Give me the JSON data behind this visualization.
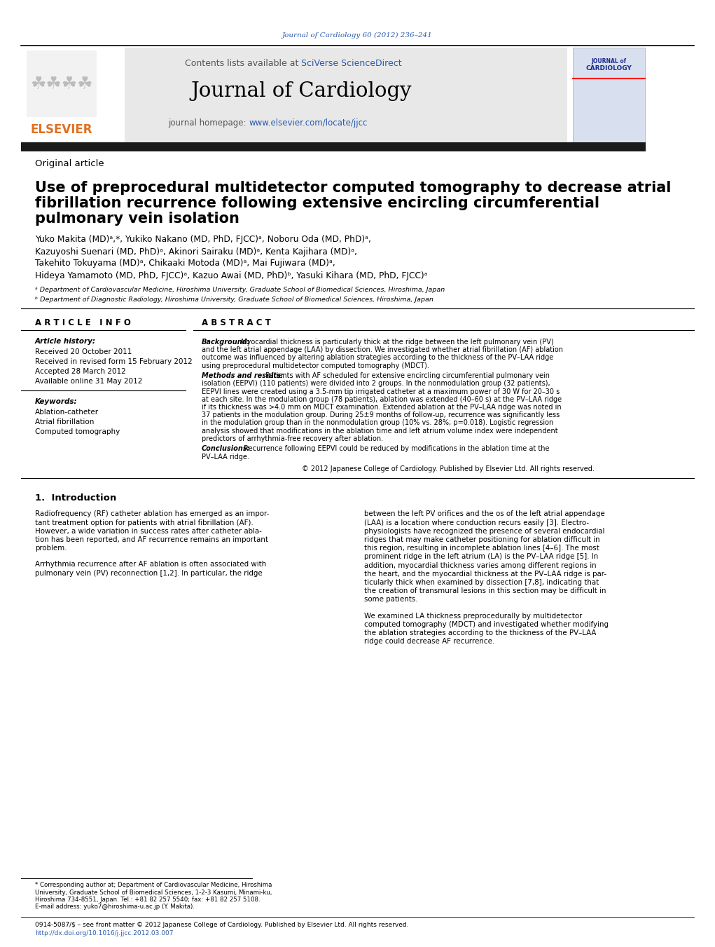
{
  "page_bg": "#ffffff",
  "top_citation": "Journal of Cardiology 60 (2012) 236–241",
  "journal_name": "Journal of Cardiology",
  "contents_line": "Contents lists available at SciVerse ScienceDirect",
  "homepage_line": "journal homepage: www.elsevier.com/locate/jjcc",
  "article_type": "Original article",
  "title_line1": "Use of preprocedural multidetector computed tomography to decrease atrial",
  "title_line2": "fibrillation recurrence following extensive encircling circumferential",
  "title_line3": "pulmonary vein isolation",
  "authors": "Yuko Makita (MD)ᵃ,*, Yukiko Nakano (MD, PhD, FJCC)ᵃ, Noboru Oda (MD, PhD)ᵃ,",
  "authors2": "Kazuyoshi Suenari (MD, PhD)ᵃ, Akinori Sairaku (MD)ᵃ, Kenta Kajihara (MD)ᵃ,",
  "authors3": "Takehito Tokuyama (MD)ᵃ, Chikaaki Motoda (MD)ᵃ, Mai Fujiwara (MD)ᵃ,",
  "authors4": "Hideya Yamamoto (MD, PhD, FJCC)ᵃ, Kazuo Awai (MD, PhD)ᵇ, Yasuki Kihara (MD, PhD, FJCC)ᵃ",
  "affil_a": "ᵃ Department of Cardiovascular Medicine, Hiroshima University, Graduate School of Biomedical Sciences, Hiroshima, Japan",
  "affil_b": "ᵇ Department of Diagnostic Radiology, Hiroshima University, Graduate School of Biomedical Sciences, Hiroshima, Japan",
  "article_info_header": "A R T I C L E   I N F O",
  "article_history_label": "Article history:",
  "received": "Received 20 October 2011",
  "revised": "Received in revised form 15 February 2012",
  "accepted": "Accepted 28 March 2012",
  "available": "Available online 31 May 2012",
  "keywords_label": "Keywords:",
  "keyword1": "Ablation-catheter",
  "keyword2": "Atrial fibrillation",
  "keyword3": "Computed tomography",
  "abstract_header": "A B S T R A C T",
  "copyright": "© 2012 Japanese College of Cardiology. Published by Elsevier Ltd. All rights reserved.",
  "intro_header": "1.  Introduction",
  "footnote_corresp": "* Corresponding author at; Department of Cardiovascular Medicine, Hiroshima University, Graduate School of Biomedical Sciences, 1-2-3 Kasumi, Minami-ku, Hiroshima 734-8551, Japan. Tel.: +81 82 257 5540; fax: +81 82 257 5108.",
  "footnote_email": "E-mail address: yuko7@hiroshima-u.ac.jp (Y. Makita).",
  "footer1": "0914-5087/$ – see front matter © 2012 Japanese College of Cardiology. Published by Elsevier Ltd. All rights reserved.",
  "footer2": "http://dx.doi.org/10.1016/j.jjcc.2012.03.007",
  "header_color": "#2a5aad",
  "orange_color": "#e07020",
  "gray_header_bg": "#e8e8e8"
}
